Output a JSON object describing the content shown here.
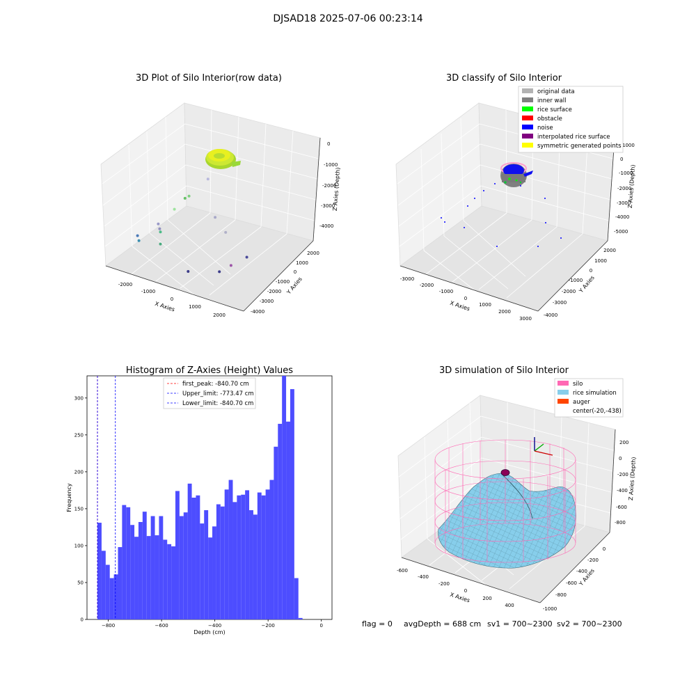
{
  "suptitle": "DJSAD18 2025-07-06 00:23:14",
  "chart_data": [
    {
      "type": "scatter",
      "projection": "3d",
      "title": "3D Plot of Silo Interior(row data)",
      "xlabel": "X Axies",
      "ylabel": "Y Axies",
      "zlabel": "Z Axies (Depth)",
      "xticks": [
        "-2000",
        "-1000",
        "0",
        "1000",
        "2000"
      ],
      "yticks": [
        "2000",
        "1000",
        "0",
        "-1000",
        "-2000",
        "-3000",
        "-4000"
      ],
      "zticks": [
        "0",
        "-1000",
        "-2000",
        "-3000",
        "-4000"
      ],
      "points": [
        {
          "x": 0,
          "y": -1400,
          "z": -700
        },
        {
          "x": -700,
          "y": -1800,
          "z": -1650
        },
        {
          "x": -550,
          "y": -1800,
          "z": -1500
        },
        {
          "x": -850,
          "y": -2400,
          "z": -1950
        },
        {
          "x": 350,
          "y": -1600,
          "z": -2200
        },
        {
          "x": -1200,
          "y": -3000,
          "z": -2500
        },
        {
          "x": -1150,
          "y": -3000,
          "z": -2700
        },
        {
          "x": -1100,
          "y": -3050,
          "z": -2800
        },
        {
          "x": -1800,
          "y": -3400,
          "z": -3100
        },
        {
          "x": -1750,
          "y": -3400,
          "z": -3300
        },
        {
          "x": -1000,
          "y": -3300,
          "z": -3200
        },
        {
          "x": 900,
          "y": -2000,
          "z": -2500
        },
        {
          "x": 1100,
          "y": -2000,
          "z": -3900
        },
        {
          "x": 1500,
          "y": -1500,
          "z": -3600
        },
        {
          "x": 900,
          "y": -2600,
          "z": -4000
        },
        {
          "x": -100,
          "y": -3000,
          "z": -4200
        }
      ]
    },
    {
      "type": "scatter",
      "projection": "3d",
      "title": "3D classify of Silo Interior",
      "xlabel": "X Axies",
      "ylabel": "Y Axies",
      "zlabel": "Z Axies (Depth)",
      "xticks": [
        "-3000",
        "-2000",
        "-1000",
        "0",
        "1000",
        "2000",
        "3000"
      ],
      "yticks": [
        "2000",
        "1000",
        "0",
        "-1000",
        "-2000",
        "-3000",
        "-4000"
      ],
      "zticks": [
        "1000",
        "0",
        "-1000",
        "-2000",
        "-3000",
        "-4000",
        "-5000"
      ],
      "legend": "upper right",
      "legend_entries": [
        {
          "label": "original data",
          "color": "#b3b3b3"
        },
        {
          "label": "inner wall",
          "color": "#808080"
        },
        {
          "label": "rice surface",
          "color": "#00ff00"
        },
        {
          "label": "obstacle",
          "color": "#ff0000"
        },
        {
          "label": "noise",
          "color": "#0000ff"
        },
        {
          "label": "interpolated rice surface",
          "color": "#800080"
        },
        {
          "label": "symmetric generated points",
          "color": "#ffff00"
        }
      ]
    },
    {
      "type": "bar",
      "subtype": "histogram",
      "title": "Histogram of Z-Axies (Height) Values",
      "xlabel": "Depth (cm)",
      "ylabel": "Frequency",
      "xlim": [
        -880,
        40
      ],
      "ylim": [
        0,
        330
      ],
      "xticks": [
        -800,
        -600,
        -400,
        -200,
        0
      ],
      "yticks": [
        0,
        50,
        100,
        150,
        200,
        250,
        300
      ],
      "bar_color": "#4d4dff",
      "bin_start": -840.7,
      "bin_width": 15.4,
      "values": [
        131,
        93,
        74,
        56,
        61,
        98,
        155,
        152,
        128,
        112,
        132,
        146,
        113,
        140,
        114,
        140,
        108,
        102,
        99,
        174,
        140,
        145,
        184,
        165,
        168,
        130,
        148,
        111,
        126,
        156,
        153,
        176,
        189,
        159,
        168,
        169,
        175,
        148,
        142,
        172,
        168,
        176,
        189,
        234,
        265,
        340,
        268,
        312,
        56,
        2
      ],
      "lines": [
        {
          "label": "first_peak: -840.70 cm",
          "x": -840.7,
          "color": "#ff0000"
        },
        {
          "label": "Upper_limit: -773.47 cm",
          "x": -773.47,
          "color": "#0000ff"
        },
        {
          "label": "Lower_limit: -840.70 cm",
          "x": -840.7,
          "color": "#0000ff"
        }
      ],
      "legend": "upper center"
    },
    {
      "type": "surface",
      "projection": "3d",
      "title": "3D simulation of Silo Interior",
      "xlabel": "X Axies",
      "ylabel": "Y Axies",
      "zlabel": "Z Axies (Depth)",
      "xticks": [
        "-600",
        "-400",
        "-200",
        "0",
        "200",
        "400"
      ],
      "yticks": [
        "0",
        "-200",
        "-400",
        "-600",
        "-800",
        "-1000"
      ],
      "zticks": [
        "200",
        "0",
        "-200",
        "-400",
        "-600",
        "-800"
      ],
      "legend": "upper right",
      "legend_entries": [
        {
          "label": "silo",
          "color": "#ff69b4"
        },
        {
          "label": "rice simulation",
          "color": "#87ceeb"
        },
        {
          "label": "auger",
          "color": "#ff4500"
        },
        {
          "label": "center(-20,-438)",
          "color": ""
        }
      ]
    }
  ],
  "footer": {
    "flag": "flag = 0",
    "avg": "avgDepth = 688 cm",
    "sv1": "sv1 = 700~2300",
    "sv2": "sv2 = 700~2300"
  }
}
